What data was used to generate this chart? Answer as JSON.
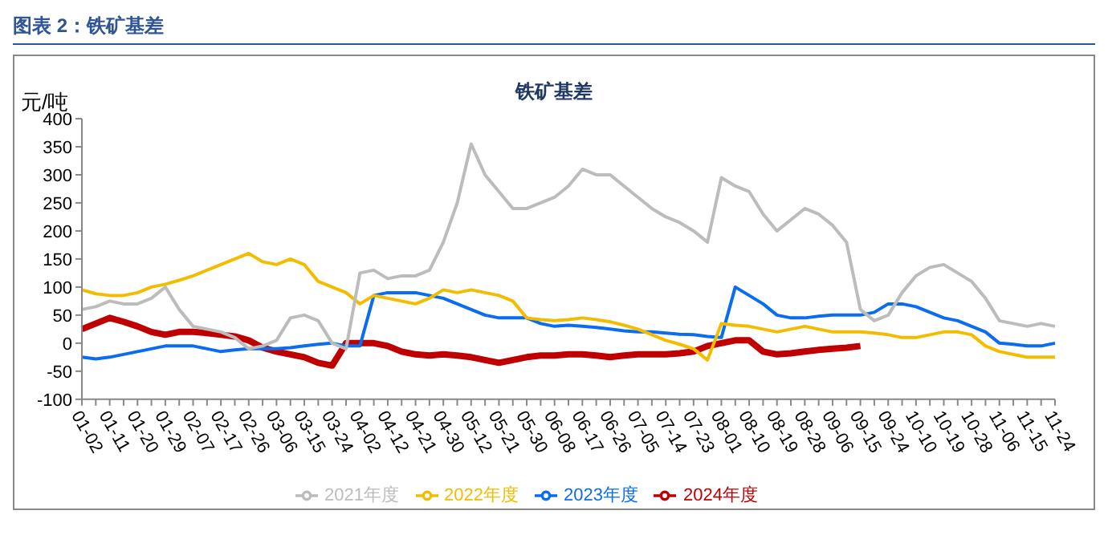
{
  "chart_data": {
    "type": "line",
    "title": "图表 2：铁矿基差",
    "subtitle": "铁矿基差",
    "ylabel": "元/吨",
    "categories": [
      "01-02",
      null,
      "01-11",
      null,
      "01-20",
      null,
      "01-29",
      null,
      "02-07",
      null,
      "02-17",
      null,
      "02-26",
      null,
      "03-06",
      null,
      "03-15",
      null,
      "03-24",
      null,
      "04-02",
      null,
      "04-12",
      null,
      "04-21",
      null,
      "04-30",
      null,
      "05-12",
      null,
      "05-21",
      null,
      "05-30",
      null,
      "06-08",
      null,
      "06-17",
      null,
      "06-26",
      null,
      "07-05",
      null,
      "07-14",
      null,
      "07-23",
      null,
      "08-01",
      null,
      "08-10",
      null,
      "08-19",
      null,
      "08-28",
      null,
      "09-06",
      null,
      "09-15",
      null,
      "09-24",
      null,
      "10-10",
      null,
      "10-19",
      null,
      "10-28",
      null,
      "11-06",
      null,
      "11-15",
      null,
      "11-24"
    ],
    "series": [
      {
        "name": "2024年度",
        "color": "#c00000",
        "values": [
          25,
          35,
          45,
          38,
          30,
          20,
          15,
          20,
          20,
          18,
          15,
          12,
          5,
          -8,
          -15,
          -20,
          -25,
          -35,
          -40,
          0,
          0,
          0,
          -5,
          -15,
          -20,
          -22,
          -20,
          -22,
          -25,
          -30,
          -35,
          -30,
          -25,
          -22,
          -22,
          -20,
          -20,
          -22,
          -25,
          -22,
          -20,
          -20,
          -20,
          -18,
          -15,
          -5,
          0,
          5,
          5,
          -15,
          -20,
          -18,
          -15,
          -12,
          -10,
          -8,
          -5,
          null,
          null,
          null,
          null,
          null,
          null,
          null,
          null,
          null,
          null,
          null,
          null,
          null,
          null
        ]
      },
      {
        "name": "2023年度",
        "color": "#0a6cf0",
        "values": [
          -25,
          -28,
          -25,
          -20,
          -15,
          -10,
          -5,
          -5,
          -5,
          -10,
          -15,
          -12,
          -10,
          -10,
          -10,
          -8,
          -5,
          -2,
          0,
          -5,
          -5,
          85,
          90,
          90,
          90,
          85,
          80,
          70,
          60,
          50,
          45,
          45,
          45,
          35,
          30,
          32,
          30,
          28,
          25,
          22,
          20,
          20,
          18,
          16,
          15,
          12,
          10,
          100,
          85,
          70,
          50,
          45,
          45,
          48,
          50,
          50,
          50,
          55,
          70,
          70,
          65,
          55,
          45,
          40,
          30,
          20,
          0,
          -2,
          -5,
          -5,
          0
        ]
      },
      {
        "name": "2022年度",
        "color": "#f2bd00",
        "values": [
          95,
          88,
          85,
          85,
          90,
          100,
          105,
          112,
          120,
          130,
          140,
          150,
          160,
          145,
          140,
          150,
          140,
          110,
          100,
          90,
          70,
          85,
          80,
          75,
          70,
          80,
          95,
          90,
          95,
          90,
          85,
          75,
          45,
          42,
          40,
          42,
          45,
          42,
          38,
          32,
          25,
          15,
          5,
          -2,
          -10,
          -30,
          35,
          32,
          30,
          25,
          20,
          25,
          30,
          25,
          20,
          20,
          20,
          18,
          15,
          10,
          10,
          15,
          20,
          20,
          15,
          -5,
          -15,
          -20,
          -25,
          -25,
          -25
        ]
      },
      {
        "name": "2021年度",
        "color": "#bcbcbc",
        "values": [
          60,
          65,
          75,
          70,
          70,
          80,
          100,
          60,
          30,
          25,
          20,
          10,
          -10,
          -5,
          5,
          45,
          50,
          40,
          0,
          -10,
          125,
          130,
          115,
          120,
          120,
          130,
          180,
          250,
          355,
          300,
          270,
          240,
          240,
          250,
          260,
          280,
          310,
          300,
          300,
          280,
          260,
          240,
          225,
          215,
          200,
          180,
          295,
          280,
          270,
          230,
          200,
          220,
          240,
          230,
          210,
          180,
          60,
          40,
          50,
          90,
          120,
          135,
          140,
          125,
          110,
          80,
          40,
          35,
          30,
          35,
          30
        ]
      }
    ],
    "ylim": [
      -100,
      400
    ],
    "yticks": [
      -100,
      -50,
      0,
      50,
      100,
      150,
      200,
      250,
      300,
      350,
      400
    ],
    "grid": false,
    "legend": "bottom",
    "marker": "none",
    "line_style": "solid"
  }
}
